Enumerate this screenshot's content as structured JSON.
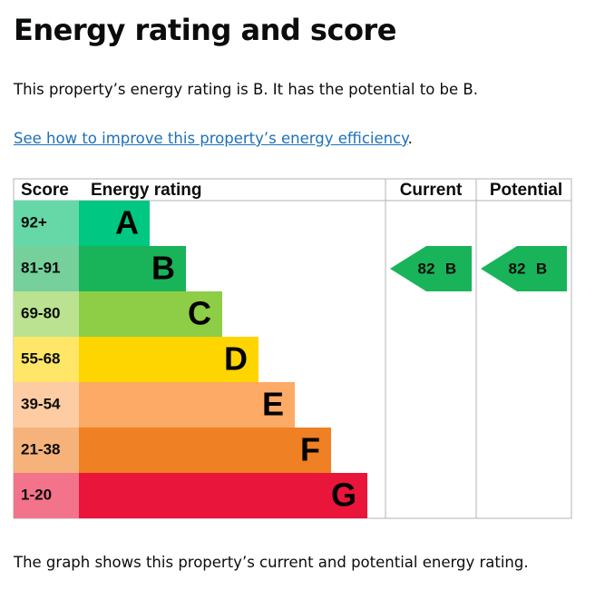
{
  "title": "Energy rating and score",
  "intro": "This property’s energy rating is B. It has the potential to be B.",
  "link": {
    "text": "See how to improve this property’s energy efficiency",
    "after": "."
  },
  "table": {
    "headers": [
      "Score",
      "Energy rating",
      "Current",
      "Potential"
    ],
    "bands": [
      {
        "score": "92+",
        "letter": "A",
        "color": "#00c781",
        "light": "#66d8a7"
      },
      {
        "score": "81-91",
        "letter": "B",
        "color": "#19b459",
        "light": "#75d09b"
      },
      {
        "score": "69-80",
        "letter": "C",
        "color": "#8dce46",
        "light": "#bbe290"
      },
      {
        "score": "55-68",
        "letter": "D",
        "color": "#ffd500",
        "light": "#ffe666"
      },
      {
        "score": "39-54",
        "letter": "E",
        "color": "#fcaa65",
        "light": "#fdcca3"
      },
      {
        "score": "21-38",
        "letter": "F",
        "color": "#ef8023",
        "light": "#f5b37b"
      },
      {
        "score": "1-20",
        "letter": "G",
        "color": "#e9153b",
        "light": "#f2738a"
      }
    ],
    "current": {
      "score": "82",
      "letter": "B"
    },
    "potential": {
      "score": "82",
      "letter": "B"
    }
  },
  "footer": "The graph shows this property’s current and potential energy rating."
}
